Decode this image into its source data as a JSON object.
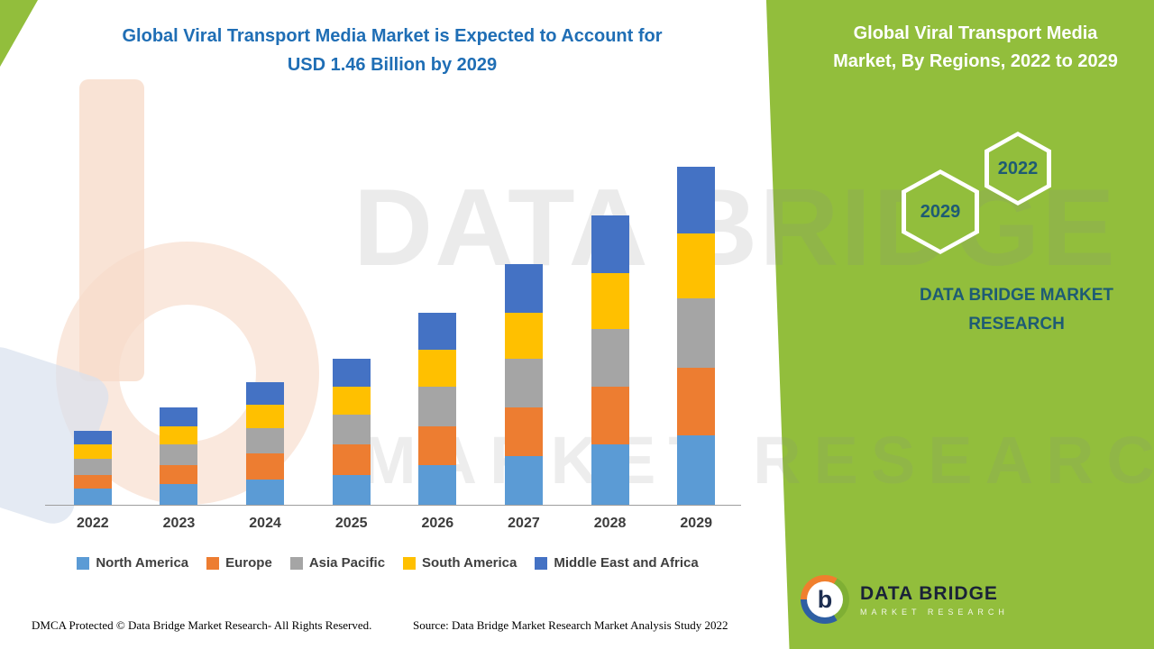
{
  "title": {
    "line1": "Global Viral Transport Media Market is Expected to Account for",
    "line2": "USD 1.46 Billion by 2029"
  },
  "watermark": {
    "line1": "DATA BRIDGE",
    "line2": "MARKET RESEARCH"
  },
  "side_panel": {
    "title_line1": "Global Viral Transport Media",
    "title_line2": "Market, By Regions, 2022 to 2029",
    "hexagons": [
      "2029",
      "2022"
    ],
    "brand_caption": "DATA BRIDGE MARKET RESEARCH",
    "bg_color": "#92BE3C",
    "hex_label_color": "#1E5B74"
  },
  "footer": {
    "dmca": "DMCA Protected © Data Bridge Market Research- All Rights Reserved.",
    "source": "Source: Data Bridge Market Research Market Analysis Study 2022"
  },
  "logo": {
    "letter": "b",
    "name": "DATA BRIDGE",
    "subname": "MARKET RESEARCH"
  },
  "chart_data": {
    "type": "bar",
    "stacked": true,
    "title": "Global Viral Transport Media Market is Expected to Account for USD 1.46 Billion by 2029",
    "unit": "USD Billion",
    "categories": [
      "2022",
      "2023",
      "2024",
      "2025",
      "2026",
      "2027",
      "2028",
      "2029"
    ],
    "series": [
      {
        "name": "North America",
        "color": "#5B9BD5",
        "values": [
          0.07,
          0.09,
          0.11,
          0.13,
          0.17,
          0.21,
          0.26,
          0.3
        ]
      },
      {
        "name": "Europe",
        "color": "#ED7D31",
        "values": [
          0.06,
          0.08,
          0.11,
          0.13,
          0.17,
          0.21,
          0.25,
          0.29
        ]
      },
      {
        "name": "Asia Pacific",
        "color": "#A5A5A5",
        "values": [
          0.07,
          0.09,
          0.11,
          0.13,
          0.17,
          0.21,
          0.25,
          0.3
        ]
      },
      {
        "name": "South America",
        "color": "#FFC000",
        "values": [
          0.06,
          0.08,
          0.1,
          0.12,
          0.16,
          0.2,
          0.24,
          0.28
        ]
      },
      {
        "name": "Middle East and Africa",
        "color": "#4472C4",
        "values": [
          0.06,
          0.08,
          0.1,
          0.12,
          0.16,
          0.21,
          0.25,
          0.29
        ]
      }
    ],
    "totals": [
      0.32,
      0.42,
      0.53,
      0.63,
      0.83,
      1.04,
      1.25,
      1.46
    ],
    "ylim": [
      0,
      1.5
    ],
    "grid": false,
    "legend_position": "bottom",
    "title_color": "#1F6EB5"
  }
}
